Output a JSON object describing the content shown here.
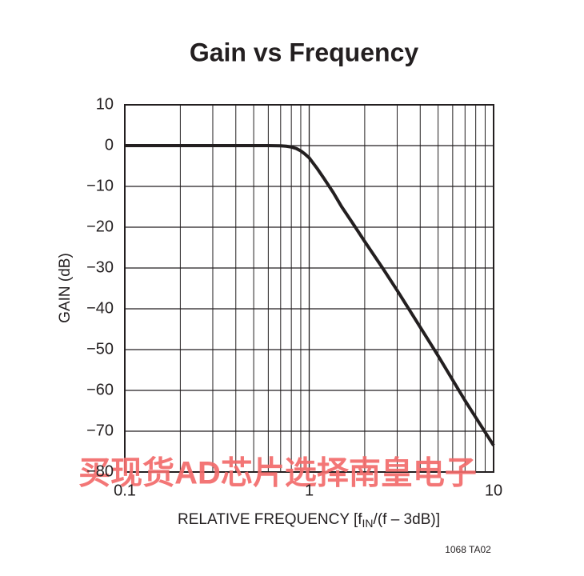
{
  "chart_data": {
    "type": "line",
    "title": "Gain vs Frequency",
    "x_label": [
      "RELATIVE FREQUENCY [f",
      "IN",
      "/(f – 3dB)]"
    ],
    "y_label": "GAIN (dB)",
    "note": "1068 TA02",
    "watermark": "买现货AD芯片选择南皇电子",
    "xscale": "log",
    "x": [
      0.1,
      0.3,
      0.5,
      0.6,
      0.7,
      0.75,
      0.8,
      0.85,
      0.9,
      0.95,
      1,
      1.1,
      1.2,
      1.35,
      1.5,
      1.75,
      2,
      2.5,
      3,
      4,
      5,
      7,
      10
    ],
    "values": [
      0,
      0,
      0,
      0,
      -0.05,
      -0.15,
      -0.35,
      -0.7,
      -1.3,
      -2.1,
      -3,
      -5.5,
      -8,
      -11.5,
      -15,
      -19.5,
      -23.5,
      -30,
      -35.5,
      -44.5,
      -51.5,
      -62.5,
      -73.5
    ],
    "color": "#231f20",
    "xlim": [
      0.1,
      10
    ],
    "xticks": [
      0.1,
      1,
      10
    ],
    "xgrid": [
      0.2,
      0.3,
      0.4,
      0.5,
      0.6,
      0.7,
      0.8,
      0.9,
      2,
      3,
      4,
      5,
      6,
      7,
      8,
      9
    ],
    "ylim": [
      -80,
      10
    ],
    "yticks": [
      10,
      0,
      {
        "value": -10,
        "label": "−10"
      },
      {
        "value": -20,
        "label": "−20"
      },
      {
        "value": -30,
        "label": "−30"
      },
      {
        "value": -40,
        "label": "−40"
      },
      {
        "value": -50,
        "label": "−50"
      },
      {
        "value": -60,
        "label": "−60"
      },
      {
        "value": -70,
        "label": "−70"
      },
      {
        "value": -80,
        "label": "−80"
      }
    ],
    "grid": true
  }
}
